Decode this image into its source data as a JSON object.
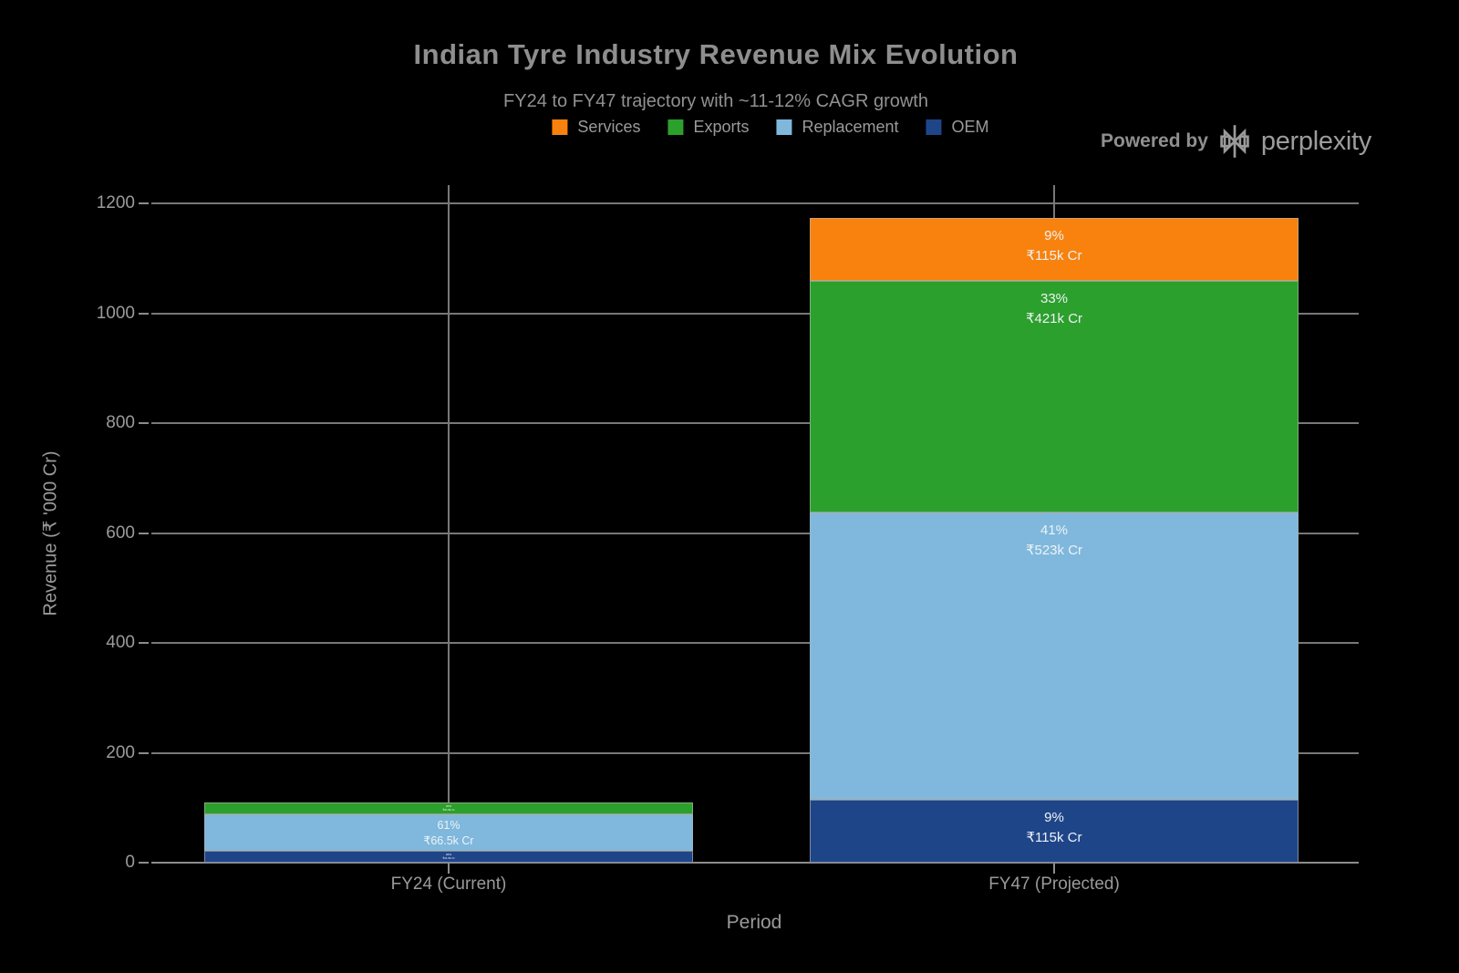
{
  "header": {
    "powered_by": "Powered by",
    "brand": "perplexity"
  },
  "chart_data": {
    "type": "bar",
    "stacked": true,
    "title": "Indian Tyre Industry Revenue Mix Evolution",
    "subtitle": "FY24 to FY47 trajectory with ~11-12% CAGR growth",
    "xlabel": "Period",
    "ylabel": "Revenue (₹ '000 Cr)",
    "ylim": [
      0,
      1200
    ],
    "yticks": [
      0,
      200,
      400,
      600,
      800,
      1000,
      1200
    ],
    "categories": [
      "FY24 (Current)",
      "FY47 (Projected)"
    ],
    "grid": true,
    "legend_position": "top",
    "background": "#000000",
    "text_color": "#9A9A9A",
    "series": [
      {
        "name": "OEM",
        "color": "#1F4589",
        "values": [
          21.5,
          115
        ],
        "labels": [
          {
            "pct": "20%",
            "val": "₹21.5k Cr",
            "size": "xs"
          },
          {
            "pct": "9%",
            "val": "₹115k Cr",
            "size": "lg"
          }
        ]
      },
      {
        "name": "Replacement",
        "color": "#7FB8DC",
        "values": [
          66.5,
          523
        ],
        "labels": [
          {
            "pct": "61%",
            "val": "₹66.5k Cr",
            "size": "md"
          },
          {
            "pct": "41%",
            "val": "₹523k Cr",
            "size": "lg"
          }
        ]
      },
      {
        "name": "Exports",
        "color": "#2CA02C",
        "values": [
          21.5,
          421
        ],
        "labels": [
          {
            "pct": "20%",
            "val": "₹21.5k Cr",
            "size": "xs"
          },
          {
            "pct": "33%",
            "val": "₹421k Cr",
            "size": "lg"
          }
        ]
      },
      {
        "name": "Services",
        "color": "#F8820D",
        "values": [
          0,
          115
        ],
        "labels": [
          null,
          {
            "pct": "9%",
            "val": "₹115k Cr",
            "size": "lg"
          }
        ]
      }
    ],
    "legend": [
      {
        "label": "Services",
        "color": "#F8820D"
      },
      {
        "label": "Exports",
        "color": "#2CA02C"
      },
      {
        "label": "Replacement",
        "color": "#7FB8DC"
      },
      {
        "label": "OEM",
        "color": "#1F4589"
      }
    ]
  }
}
